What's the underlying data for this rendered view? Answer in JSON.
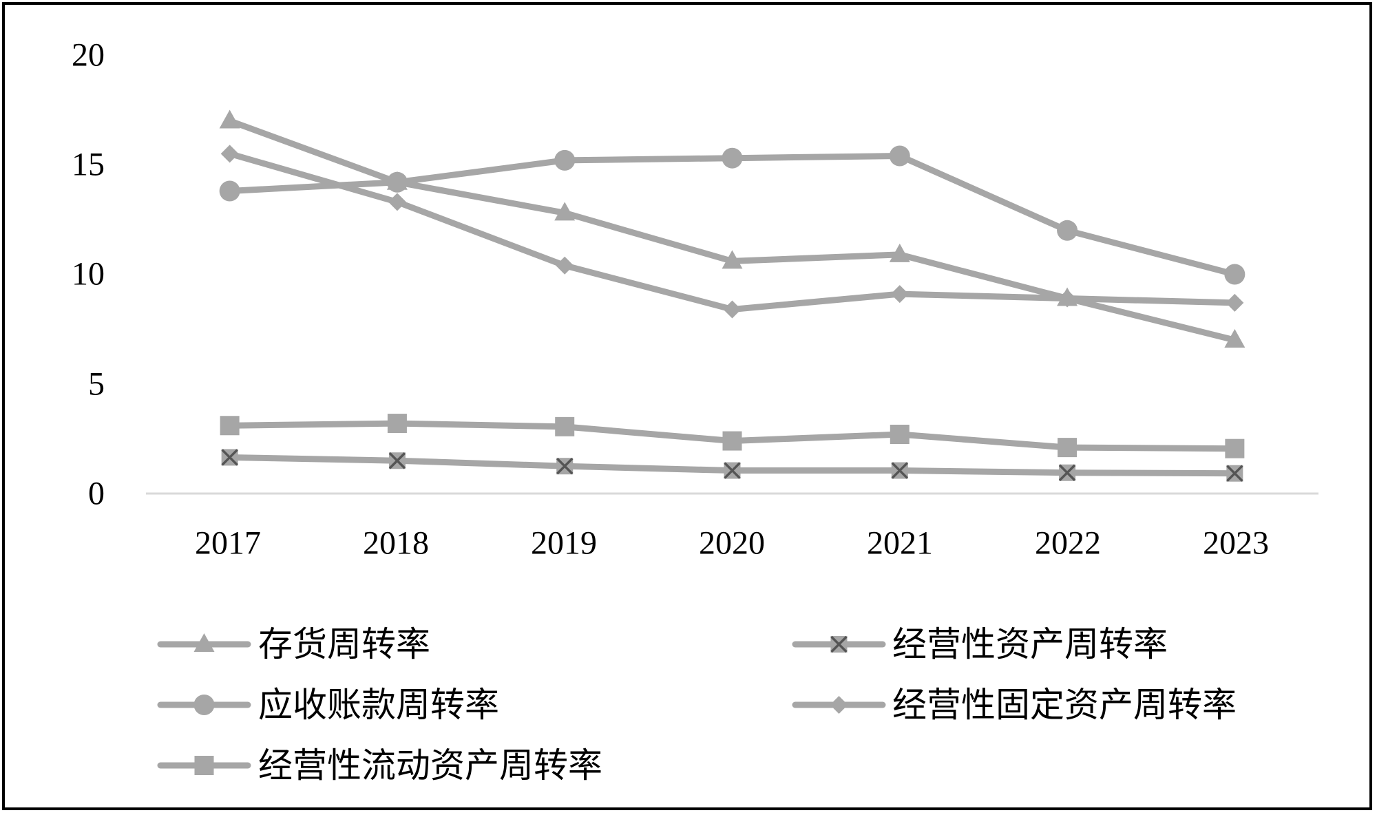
{
  "chart_data": {
    "type": "line",
    "title": "",
    "xlabel": "",
    "ylabel": "",
    "x": [
      "2017",
      "2018",
      "2019",
      "2020",
      "2021",
      "2022",
      "2023"
    ],
    "ylim": [
      0,
      20
    ],
    "yticks": [
      "0",
      "5",
      "10",
      "15",
      "20"
    ],
    "grid": false,
    "legend_position": "bottom",
    "series_color": "#a6a6a6",
    "series": [
      {
        "name": "存货周转率",
        "marker": "triangle",
        "values": [
          17.0,
          14.2,
          12.8,
          10.6,
          10.9,
          8.9,
          7.0
        ]
      },
      {
        "name": "经营性资产周转率",
        "marker": "x-square",
        "values": [
          1.65,
          1.5,
          1.25,
          1.05,
          1.05,
          0.95,
          0.92
        ]
      },
      {
        "name": "应收账款周转率",
        "marker": "circle",
        "values": [
          13.8,
          14.2,
          15.2,
          15.3,
          15.4,
          12.0,
          10.0
        ]
      },
      {
        "name": "经营性固定资产周转率",
        "marker": "diamond",
        "values": [
          15.5,
          13.3,
          10.4,
          8.4,
          9.1,
          8.9,
          8.7
        ]
      },
      {
        "name": "经营性流动资产周转率",
        "marker": "square",
        "values": [
          3.1,
          3.2,
          3.05,
          2.4,
          2.7,
          2.1,
          2.05
        ]
      }
    ]
  }
}
